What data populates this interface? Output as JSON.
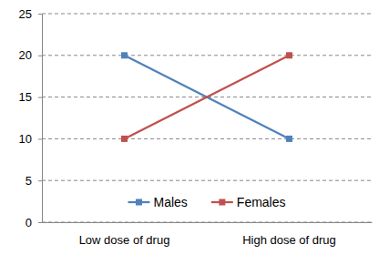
{
  "chart_data": {
    "type": "line",
    "categories": [
      "Low dose of drug",
      "High dose of drug"
    ],
    "series": [
      {
        "name": "Males",
        "color": "#4f81bd",
        "values": [
          20,
          10
        ],
        "marker": "square",
        "line_style": "solid"
      },
      {
        "name": "Females",
        "color": "#c0504d",
        "values": [
          10,
          20
        ],
        "marker": "square",
        "line_style": "solid"
      }
    ],
    "ylim": [
      0,
      25
    ],
    "yticks": [
      0,
      5,
      10,
      15,
      20,
      25
    ],
    "grid": true,
    "legend": "bottom"
  }
}
